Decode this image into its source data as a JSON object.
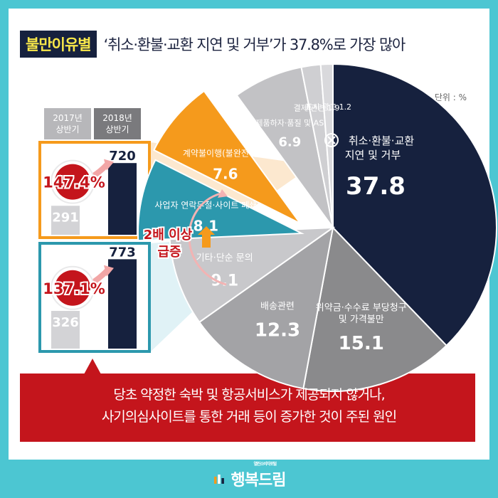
{
  "title": {
    "badge": "불만이유별",
    "text": "‘취소·환불·교환 지연 및 거부’가 37.8%로 가장 많아"
  },
  "unit": "단위 : %",
  "comparison": {
    "col_2017": [
      "2017년",
      "상반기"
    ],
    "col_2018": [
      "2018년",
      "상반기"
    ],
    "badge_lines": [
      "2배 이상",
      "급증"
    ]
  },
  "callout_lines": [
    "당초 약정한 숙박 및 항공서비스가 제공되지 않거나,",
    "사기의심사이트를 통한 거래 등이 증가한 것이 주된 원인"
  ],
  "footer": {
    "brand": "행복드림",
    "sub": "열린소비자포털"
  },
  "colors": {
    "navy": "#16213e",
    "orange": "#f59a1c",
    "teal": "#2c98ad",
    "red": "#c4151c",
    "footer_bg": "#4cc6d2"
  },
  "chart_data": [
    {
      "type": "pie",
      "labels": [
        "취소·환불·교환 지연 및 거부",
        "위약금·수수료 부당청구 및 가격불만",
        "배송관련",
        "기타·단순 문의",
        "사업자 연락두절·사이트 폐쇄",
        "계약불이행(불완전이행)",
        "제품하자·품질 및 AS",
        "결제 관련",
        "표시·광고"
      ],
      "values": [
        37.8,
        15.1,
        12.3,
        9.1,
        8.1,
        7.6,
        6.9,
        1.9,
        1.2
      ],
      "value_labels": [
        "37.8",
        "15.1",
        "12.3",
        "9.1",
        "8.1",
        "7.6",
        "6.9",
        "1.9",
        "1.2"
      ],
      "label_lines": [
        [
          "취소·환불·교환",
          "지연 및 거부"
        ],
        [
          "위약금·수수료 부당청구",
          "및 가격불만"
        ],
        [
          "배송관련"
        ],
        [
          "기타·단순 문의"
        ],
        [
          "사업자 연락두절·사이트 폐쇄"
        ],
        [
          "계약불이행(불완전이행)"
        ],
        [
          "제품하자·품질 및 AS"
        ],
        [
          "결제 관련"
        ],
        [
          "표시·광고"
        ]
      ],
      "colors": [
        "#16213e",
        "#8a8a8c",
        "#a3a3a6",
        "#c8c8cb",
        "#2c98ad",
        "#f59a1c",
        "#c2c2c5",
        "#cfcfd2",
        "#d9d9dc"
      ],
      "highlighted": [
        "사업자 연락두절·사이트 폐쇄",
        "계약불이행(불완전이행)"
      ],
      "unit": "%"
    },
    {
      "type": "bar",
      "categories": [
        "2017년 상반기",
        "2018년 상반기"
      ],
      "series": [
        {
          "values": [
            291,
            720
          ]
        }
      ],
      "change_label": "147.4%",
      "highlight_color": "#f59a1c"
    },
    {
      "type": "bar",
      "categories": [
        "2017년 상반기",
        "2018년 상반기"
      ],
      "series": [
        {
          "values": [
            326,
            773
          ]
        }
      ],
      "change_label": "137.1%",
      "highlight_color": "#2c98ad"
    }
  ]
}
